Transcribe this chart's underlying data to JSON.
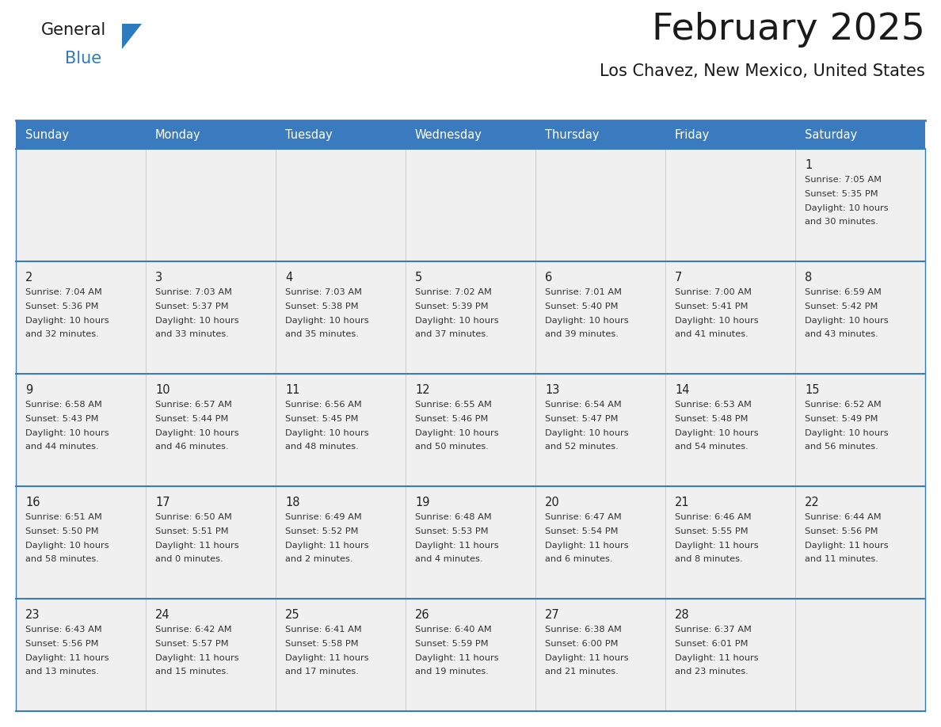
{
  "title": "February 2025",
  "subtitle": "Los Chavez, New Mexico, United States",
  "header_color": "#3a7abf",
  "header_text_color": "#ffffff",
  "cell_bg": "#f0f0f0",
  "row_border_color": "#3a7abf",
  "col_border_color": "#cccccc",
  "outer_border_color": "#3a7abf",
  "title_color": "#1a1a1a",
  "subtitle_color": "#1a1a1a",
  "day_num_color": "#222222",
  "text_color": "#333333",
  "logo_general_color": "#1a1a1a",
  "logo_blue_color": "#2d7bbf",
  "logo_triangle_color": "#2d7bbf",
  "day_names": [
    "Sunday",
    "Monday",
    "Tuesday",
    "Wednesday",
    "Thursday",
    "Friday",
    "Saturday"
  ],
  "days": [
    {
      "day": 1,
      "col": 6,
      "row": 0,
      "sunrise": "7:05 AM",
      "sunset": "5:35 PM",
      "daylight_h": "10 hours",
      "daylight_m": "and 30 minutes."
    },
    {
      "day": 2,
      "col": 0,
      "row": 1,
      "sunrise": "7:04 AM",
      "sunset": "5:36 PM",
      "daylight_h": "10 hours",
      "daylight_m": "and 32 minutes."
    },
    {
      "day": 3,
      "col": 1,
      "row": 1,
      "sunrise": "7:03 AM",
      "sunset": "5:37 PM",
      "daylight_h": "10 hours",
      "daylight_m": "and 33 minutes."
    },
    {
      "day": 4,
      "col": 2,
      "row": 1,
      "sunrise": "7:03 AM",
      "sunset": "5:38 PM",
      "daylight_h": "10 hours",
      "daylight_m": "and 35 minutes."
    },
    {
      "day": 5,
      "col": 3,
      "row": 1,
      "sunrise": "7:02 AM",
      "sunset": "5:39 PM",
      "daylight_h": "10 hours",
      "daylight_m": "and 37 minutes."
    },
    {
      "day": 6,
      "col": 4,
      "row": 1,
      "sunrise": "7:01 AM",
      "sunset": "5:40 PM",
      "daylight_h": "10 hours",
      "daylight_m": "and 39 minutes."
    },
    {
      "day": 7,
      "col": 5,
      "row": 1,
      "sunrise": "7:00 AM",
      "sunset": "5:41 PM",
      "daylight_h": "10 hours",
      "daylight_m": "and 41 minutes."
    },
    {
      "day": 8,
      "col": 6,
      "row": 1,
      "sunrise": "6:59 AM",
      "sunset": "5:42 PM",
      "daylight_h": "10 hours",
      "daylight_m": "and 43 minutes."
    },
    {
      "day": 9,
      "col": 0,
      "row": 2,
      "sunrise": "6:58 AM",
      "sunset": "5:43 PM",
      "daylight_h": "10 hours",
      "daylight_m": "and 44 minutes."
    },
    {
      "day": 10,
      "col": 1,
      "row": 2,
      "sunrise": "6:57 AM",
      "sunset": "5:44 PM",
      "daylight_h": "10 hours",
      "daylight_m": "and 46 minutes."
    },
    {
      "day": 11,
      "col": 2,
      "row": 2,
      "sunrise": "6:56 AM",
      "sunset": "5:45 PM",
      "daylight_h": "10 hours",
      "daylight_m": "and 48 minutes."
    },
    {
      "day": 12,
      "col": 3,
      "row": 2,
      "sunrise": "6:55 AM",
      "sunset": "5:46 PM",
      "daylight_h": "10 hours",
      "daylight_m": "and 50 minutes."
    },
    {
      "day": 13,
      "col": 4,
      "row": 2,
      "sunrise": "6:54 AM",
      "sunset": "5:47 PM",
      "daylight_h": "10 hours",
      "daylight_m": "and 52 minutes."
    },
    {
      "day": 14,
      "col": 5,
      "row": 2,
      "sunrise": "6:53 AM",
      "sunset": "5:48 PM",
      "daylight_h": "10 hours",
      "daylight_m": "and 54 minutes."
    },
    {
      "day": 15,
      "col": 6,
      "row": 2,
      "sunrise": "6:52 AM",
      "sunset": "5:49 PM",
      "daylight_h": "10 hours",
      "daylight_m": "and 56 minutes."
    },
    {
      "day": 16,
      "col": 0,
      "row": 3,
      "sunrise": "6:51 AM",
      "sunset": "5:50 PM",
      "daylight_h": "10 hours",
      "daylight_m": "and 58 minutes."
    },
    {
      "day": 17,
      "col": 1,
      "row": 3,
      "sunrise": "6:50 AM",
      "sunset": "5:51 PM",
      "daylight_h": "11 hours",
      "daylight_m": "and 0 minutes."
    },
    {
      "day": 18,
      "col": 2,
      "row": 3,
      "sunrise": "6:49 AM",
      "sunset": "5:52 PM",
      "daylight_h": "11 hours",
      "daylight_m": "and 2 minutes."
    },
    {
      "day": 19,
      "col": 3,
      "row": 3,
      "sunrise": "6:48 AM",
      "sunset": "5:53 PM",
      "daylight_h": "11 hours",
      "daylight_m": "and 4 minutes."
    },
    {
      "day": 20,
      "col": 4,
      "row": 3,
      "sunrise": "6:47 AM",
      "sunset": "5:54 PM",
      "daylight_h": "11 hours",
      "daylight_m": "and 6 minutes."
    },
    {
      "day": 21,
      "col": 5,
      "row": 3,
      "sunrise": "6:46 AM",
      "sunset": "5:55 PM",
      "daylight_h": "11 hours",
      "daylight_m": "and 8 minutes."
    },
    {
      "day": 22,
      "col": 6,
      "row": 3,
      "sunrise": "6:44 AM",
      "sunset": "5:56 PM",
      "daylight_h": "11 hours",
      "daylight_m": "and 11 minutes."
    },
    {
      "day": 23,
      "col": 0,
      "row": 4,
      "sunrise": "6:43 AM",
      "sunset": "5:56 PM",
      "daylight_h": "11 hours",
      "daylight_m": "and 13 minutes."
    },
    {
      "day": 24,
      "col": 1,
      "row": 4,
      "sunrise": "6:42 AM",
      "sunset": "5:57 PM",
      "daylight_h": "11 hours",
      "daylight_m": "and 15 minutes."
    },
    {
      "day": 25,
      "col": 2,
      "row": 4,
      "sunrise": "6:41 AM",
      "sunset": "5:58 PM",
      "daylight_h": "11 hours",
      "daylight_m": "and 17 minutes."
    },
    {
      "day": 26,
      "col": 3,
      "row": 4,
      "sunrise": "6:40 AM",
      "sunset": "5:59 PM",
      "daylight_h": "11 hours",
      "daylight_m": "and 19 minutes."
    },
    {
      "day": 27,
      "col": 4,
      "row": 4,
      "sunrise": "6:38 AM",
      "sunset": "6:00 PM",
      "daylight_h": "11 hours",
      "daylight_m": "and 21 minutes."
    },
    {
      "day": 28,
      "col": 5,
      "row": 4,
      "sunrise": "6:37 AM",
      "sunset": "6:01 PM",
      "daylight_h": "11 hours",
      "daylight_m": "and 23 minutes."
    }
  ],
  "num_rows": 5,
  "num_cols": 7
}
